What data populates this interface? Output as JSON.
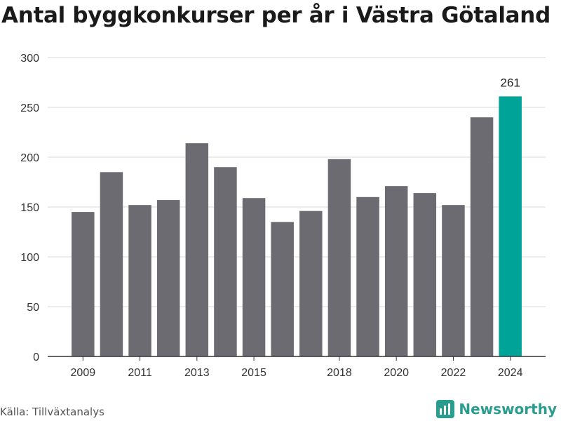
{
  "title": "Antal byggkonkurser per år i Västra Götaland",
  "source": "Källa: Tillväxtanalys",
  "brand": {
    "name": "Newsworthy",
    "icon": "newsworthy-logo-icon",
    "color": "#2a9d8f"
  },
  "colors": {
    "bar": "#6d6b72",
    "highlight": "#00a398",
    "grid": "#d9d9d9",
    "axis": "#333333",
    "text": "#333333"
  },
  "chart_data": {
    "type": "bar",
    "title": "Antal byggkonkurser per år i Västra Götaland",
    "xlabel": "",
    "ylabel": "",
    "categories": [
      "2009",
      "2010",
      "2011",
      "2012",
      "2013",
      "2014",
      "2015",
      "2016",
      "2017",
      "2018",
      "2019",
      "2020",
      "2021",
      "2022",
      "2023",
      "2024"
    ],
    "values": [
      145,
      185,
      152,
      157,
      214,
      190,
      159,
      135,
      146,
      198,
      160,
      171,
      164,
      152,
      240,
      261
    ],
    "highlight_index": 15,
    "highlight_label": "261",
    "xtick_labels": [
      "2009",
      "2011",
      "2013",
      "2015",
      "2018",
      "2020",
      "2022",
      "2024"
    ],
    "ylim": [
      0,
      300
    ],
    "yticks": [
      0,
      50,
      100,
      150,
      200,
      250,
      300
    ],
    "grid": true,
    "legend": "none"
  }
}
